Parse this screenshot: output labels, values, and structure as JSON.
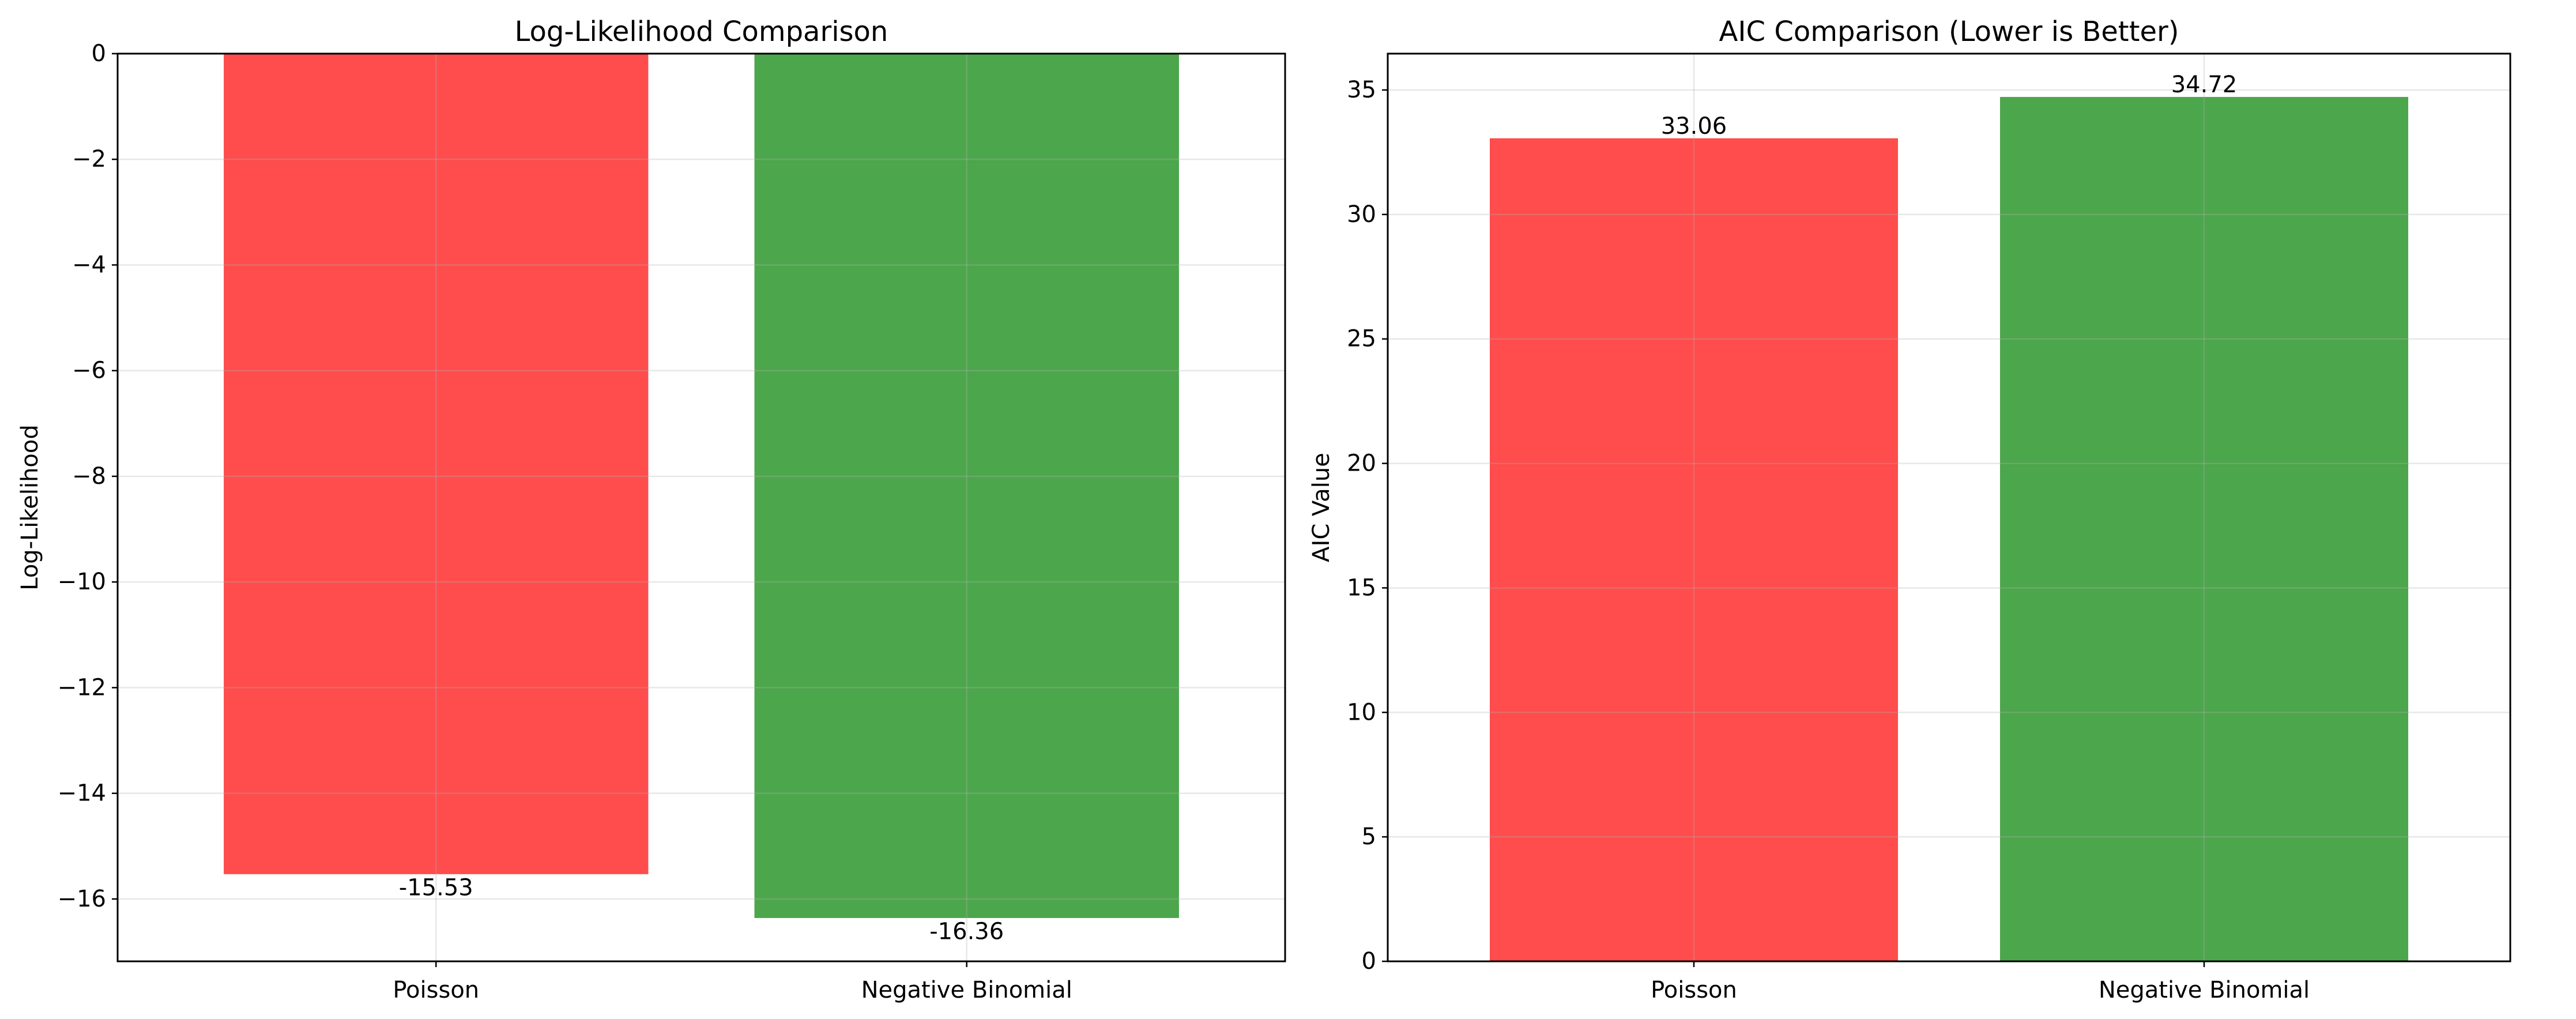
{
  "chart_data": [
    {
      "type": "bar",
      "title": "Log-Likelihood Comparison",
      "xlabel": "",
      "ylabel": "Log-Likelihood",
      "categories": [
        "Poisson",
        "Negative Binomial"
      ],
      "values": [
        -15.53,
        -16.36
      ],
      "value_labels": [
        "-15.53",
        "-16.36"
      ],
      "colors": [
        "#ff4c4c",
        "#4ca64c"
      ],
      "ylim": [
        -17.18,
        0
      ],
      "yticks": [
        0,
        -2,
        -4,
        -6,
        -8,
        -10,
        -12,
        -14,
        -16
      ],
      "ytick_labels": [
        "0",
        "−2",
        "−4",
        "−6",
        "−8",
        "−10",
        "−12",
        "−14",
        "−16"
      ],
      "grid": true
    },
    {
      "type": "bar",
      "title": "AIC Comparison (Lower is Better)",
      "xlabel": "",
      "ylabel": "AIC Value",
      "categories": [
        "Poisson",
        "Negative Binomial"
      ],
      "values": [
        33.06,
        34.72
      ],
      "value_labels": [
        "33.06",
        "34.72"
      ],
      "colors": [
        "#ff4c4c",
        "#4ca64c"
      ],
      "ylim": [
        0,
        36.46
      ],
      "yticks": [
        0,
        5,
        10,
        15,
        20,
        25,
        30,
        35
      ],
      "ytick_labels": [
        "0",
        "5",
        "10",
        "15",
        "20",
        "25",
        "30",
        "35"
      ],
      "grid": true
    }
  ]
}
